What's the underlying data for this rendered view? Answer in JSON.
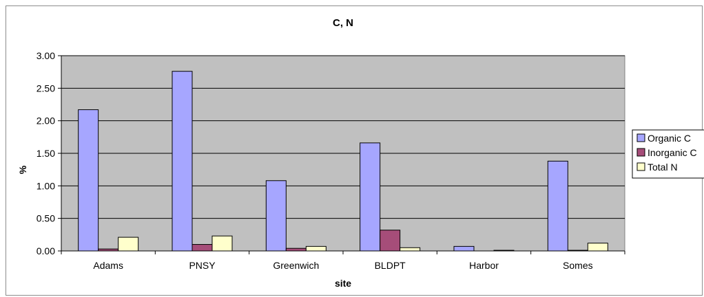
{
  "chart_data": {
    "type": "bar",
    "title": "C, N",
    "xlabel": "site",
    "ylabel": "%",
    "categories": [
      "Adams",
      "PNSY",
      "Greenwich",
      "BLDPT",
      "Harbor",
      "Somes"
    ],
    "series": [
      {
        "name": "Organic C",
        "color": "#a6a6ff",
        "values": [
          2.17,
          2.76,
          1.08,
          1.66,
          0.07,
          1.38
        ]
      },
      {
        "name": "Inorganic C",
        "color": "#a64d79",
        "values": [
          0.03,
          0.1,
          0.04,
          0.32,
          0.0,
          0.01
        ]
      },
      {
        "name": "Total N",
        "color": "#ffffcc",
        "values": [
          0.21,
          0.23,
          0.07,
          0.05,
          0.01,
          0.12
        ]
      }
    ],
    "yticks": [
      "0.00",
      "0.50",
      "1.00",
      "1.50",
      "2.00",
      "2.50",
      "3.00"
    ],
    "ylim": [
      0,
      3.0
    ],
    "grid": true,
    "legend_position": "right",
    "plot_background": "#c0c0c0"
  }
}
